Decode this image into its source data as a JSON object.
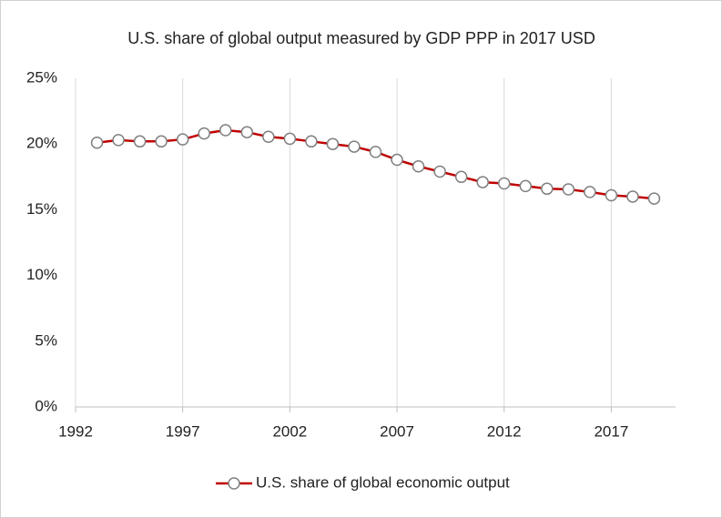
{
  "chart_data": {
    "type": "line",
    "title": "U.S. share of global output measured by GDP PPP in 2017 USD",
    "x": [
      1993,
      1994,
      1995,
      1996,
      1997,
      1998,
      1999,
      2000,
      2001,
      2002,
      2003,
      2004,
      2005,
      2006,
      2007,
      2008,
      2009,
      2010,
      2011,
      2012,
      2013,
      2014,
      2015,
      2016,
      2017,
      2018,
      2019
    ],
    "series": [
      {
        "name": "U.S. share of global economic output",
        "color": "#c00000",
        "marker_color": "#808080",
        "values": [
          20.1,
          20.3,
          20.2,
          20.2,
          20.35,
          20.8,
          21.05,
          20.9,
          20.55,
          20.4,
          20.2,
          20.0,
          19.8,
          19.4,
          18.8,
          18.3,
          17.9,
          17.5,
          17.1,
          17.0,
          16.8,
          16.6,
          16.55,
          16.35,
          16.1,
          16.0,
          15.85
        ]
      }
    ],
    "xlim": [
      1992,
      2020
    ],
    "xticks": [
      1992,
      1997,
      2002,
      2007,
      2012,
      2017
    ],
    "ylim": [
      0,
      25
    ],
    "yticks": [
      {
        "value": 0,
        "label": "0%"
      },
      {
        "value": 5,
        "label": "5%"
      },
      {
        "value": 10,
        "label": "10%"
      },
      {
        "value": 15,
        "label": "15%"
      },
      {
        "value": 20,
        "label": "20%"
      },
      {
        "value": 25,
        "label": "25%"
      }
    ],
    "grid": "x",
    "legend": "bottom"
  }
}
